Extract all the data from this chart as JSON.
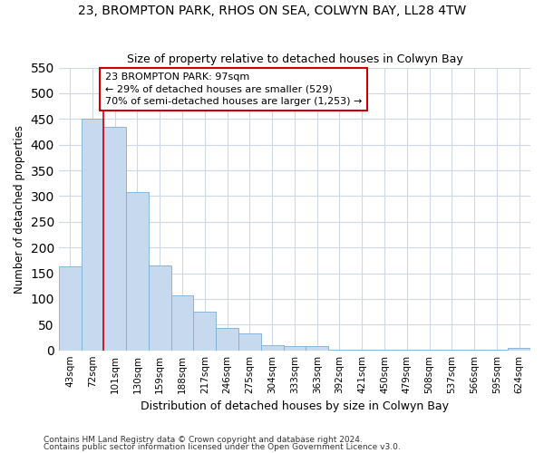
{
  "title": "23, BROMPTON PARK, RHOS ON SEA, COLWYN BAY, LL28 4TW",
  "subtitle": "Size of property relative to detached houses in Colwyn Bay",
  "xlabel": "Distribution of detached houses by size in Colwyn Bay",
  "ylabel": "Number of detached properties",
  "bar_color": "#c6d9ef",
  "bar_edge_color": "#7bafd4",
  "background_color": "#ffffff",
  "grid_color": "#d0d8e8",
  "fig_background": "#ffffff",
  "categories": [
    "43sqm",
    "72sqm",
    "101sqm",
    "130sqm",
    "159sqm",
    "188sqm",
    "217sqm",
    "246sqm",
    "275sqm",
    "304sqm",
    "333sqm",
    "363sqm",
    "392sqm",
    "421sqm",
    "450sqm",
    "479sqm",
    "508sqm",
    "537sqm",
    "566sqm",
    "595sqm",
    "624sqm"
  ],
  "values": [
    163,
    450,
    435,
    308,
    165,
    107,
    75,
    44,
    33,
    10,
    8,
    8,
    1,
    1,
    1,
    1,
    1,
    1,
    1,
    1,
    5
  ],
  "red_line_x": 1.5,
  "annotation_text": "23 BROMPTON PARK: 97sqm\n← 29% of detached houses are smaller (529)\n70% of semi-detached houses are larger (1,253) →",
  "annotation_box_facecolor": "#ffffff",
  "annotation_border_color": "#cc0000",
  "ylim": [
    0,
    550
  ],
  "yticks": [
    0,
    50,
    100,
    150,
    200,
    250,
    300,
    350,
    400,
    450,
    500,
    550
  ],
  "footer1": "Contains HM Land Registry data © Crown copyright and database right 2024.",
  "footer2": "Contains public sector information licensed under the Open Government Licence v3.0."
}
